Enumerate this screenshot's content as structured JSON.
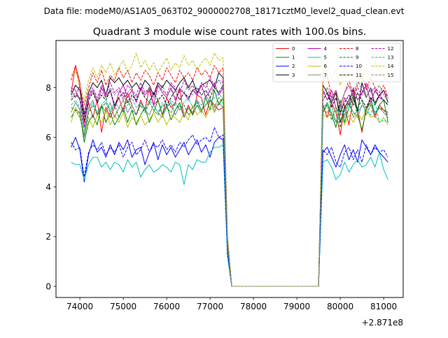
{
  "suptitle": "Data file: modeM0/AS1A05_063T02_9000002708_18171cztM0_level2_quad_clean.evt",
  "chart_data": {
    "type": "line",
    "title": "Quadrant 3 module wise count rates with 100.0s bins.",
    "xlabel": "",
    "ylabel": "",
    "x_offset_label": "+2.871e8",
    "xlim": [
      73450,
      81450
    ],
    "ylim": [
      -0.45,
      9.9
    ],
    "x_ticks": [
      74000,
      75000,
      76000,
      77000,
      78000,
      79000,
      80000,
      81000
    ],
    "y_ticks": [
      0,
      2,
      4,
      6,
      8
    ],
    "grid": false,
    "legend_position": "upper-right",
    "gap": {
      "start": 77500,
      "end": 79500
    },
    "segment1_x": [
      73800,
      73900,
      74000,
      74100,
      74200,
      74300,
      74400,
      74500,
      74600,
      74700,
      74800,
      74900,
      75000,
      75100,
      75200,
      75300,
      75400,
      75500,
      75600,
      75700,
      75800,
      75900,
      76000,
      76100,
      76200,
      76300,
      76400,
      76500,
      76600,
      76700,
      76800,
      76900,
      77000,
      77100,
      77200,
      77300,
      77400
    ],
    "segment2_x": [
      79600,
      79700,
      79800,
      79900,
      80000,
      80100,
      80200,
      80300,
      80400,
      80500,
      80600,
      80700,
      80800,
      80900,
      81000,
      81100
    ],
    "series": [
      {
        "name": "0",
        "color": "#ff0000",
        "dash": "solid",
        "seg1": [
          7.8,
          8.9,
          8.2,
          6.6,
          7.4,
          6.8,
          7.5,
          6.2,
          7.2,
          6.8,
          7.2,
          7.6,
          7.0,
          7.8,
          7.3,
          6.9,
          7.5,
          7.1,
          8.0,
          7.3,
          7.5,
          6.9,
          7.6,
          7.2,
          7.4,
          8.0,
          6.8,
          7.3,
          6.9,
          7.7,
          7.6,
          6.9,
          7.5,
          7.3,
          7.1,
          7.2,
          1.6
        ],
        "seg2": [
          7.3,
          6.8,
          7.4,
          7.0,
          6.1,
          7.3,
          6.5,
          7.6,
          7.1,
          6.2,
          7.2,
          7.4,
          6.8,
          7.3,
          7.1,
          7.0
        ]
      },
      {
        "name": "1",
        "color": "#008000",
        "dash": "solid",
        "seg1": [
          6.8,
          7.1,
          7.0,
          5.8,
          6.6,
          6.9,
          6.5,
          7.3,
          6.6,
          7.0,
          6.5,
          6.8,
          7.2,
          6.6,
          7.1,
          6.5,
          6.9,
          7.2,
          6.6,
          7.0,
          7.5,
          6.9,
          7.3,
          6.7,
          7.1,
          7.4,
          6.8,
          7.2,
          6.9,
          7.3,
          7.0,
          7.6,
          7.1,
          7.9,
          7.3,
          7.6,
          1.5
        ],
        "seg2": [
          7.0,
          7.4,
          6.9,
          6.4,
          7.5,
          6.6,
          7.2,
          7.7,
          6.9,
          6.3,
          7.1,
          7.6,
          6.9,
          7.3,
          7.5,
          6.6
        ]
      },
      {
        "name": "2",
        "color": "#0000ff",
        "dash": "solid",
        "seg1": [
          5.6,
          6.0,
          5.5,
          4.2,
          5.3,
          5.9,
          5.4,
          5.6,
          5.2,
          5.7,
          5.3,
          5.8,
          5.5,
          5.9,
          5.2,
          5.5,
          5.6,
          4.9,
          5.4,
          5.8,
          5.1,
          5.7,
          5.3,
          5.6,
          5.2,
          5.5,
          5.8,
          5.3,
          5.6,
          5.9,
          5.4,
          5.7,
          5.2,
          5.8,
          6.0,
          5.9,
          1.3
        ],
        "seg2": [
          5.4,
          5.6,
          5.2,
          4.8,
          5.3,
          5.7,
          5.1,
          5.5,
          5.0,
          5.9,
          5.6,
          5.3,
          5.7,
          5.4,
          5.2,
          5.0
        ]
      },
      {
        "name": "3",
        "color": "#000000",
        "dash": "solid",
        "seg1": [
          7.7,
          8.1,
          7.9,
          6.9,
          7.8,
          8.2,
          8.0,
          8.3,
          7.7,
          8.4,
          8.2,
          8.4,
          8.1,
          8.3,
          8.0,
          8.2,
          7.9,
          8.3,
          8.1,
          7.7,
          8.2,
          8.0,
          8.3,
          8.1,
          7.9,
          8.2,
          8.4,
          8.0,
          8.3,
          7.8,
          8.1,
          8.2,
          8.3,
          8.0,
          8.6,
          8.4,
          1.9
        ],
        "seg2": [
          8.1,
          7.8,
          7.4,
          7.8,
          6.6,
          7.2,
          7.5,
          7.9,
          7.0,
          8.2,
          7.6,
          8.0,
          7.3,
          7.7,
          7.9,
          7.4
        ]
      },
      {
        "name": "4",
        "color": "#bf00bf",
        "dash": "solid",
        "seg1": [
          8.0,
          7.9,
          7.5,
          6.4,
          7.6,
          7.9,
          7.4,
          8.0,
          7.6,
          7.9,
          7.2,
          7.8,
          8.1,
          7.6,
          7.9,
          7.4,
          8.0,
          7.7,
          7.9,
          7.3,
          8.1,
          7.8,
          7.6,
          8.0,
          7.5,
          7.9,
          7.8,
          7.5,
          7.9,
          7.7,
          8.1,
          7.6,
          7.9,
          8.2,
          7.7,
          8.0,
          1.8
        ],
        "seg2": [
          7.9,
          7.5,
          7.9,
          7.2,
          6.9,
          7.6,
          7.3,
          8.0,
          7.5,
          7.8,
          8.1,
          7.4,
          7.9,
          7.6,
          7.5,
          7.3
        ]
      },
      {
        "name": "5",
        "color": "#00bfbf",
        "dash": "solid",
        "seg1": [
          5.0,
          4.9,
          4.9,
          4.3,
          4.9,
          5.2,
          5.2,
          4.8,
          5.0,
          4.7,
          5.0,
          4.9,
          4.6,
          5.1,
          4.8,
          5.0,
          4.4,
          4.7,
          4.9,
          4.6,
          4.7,
          4.9,
          4.8,
          4.6,
          5.0,
          4.9,
          4.1,
          4.9,
          4.7,
          5.1,
          5.0,
          5.0,
          5.4,
          5.6,
          5.6,
          5.7,
          1.2
        ],
        "seg2": [
          5.0,
          5.1,
          4.8,
          4.3,
          4.5,
          5.0,
          4.6,
          4.9,
          5.1,
          4.8,
          4.9,
          5.2,
          4.8,
          5.4,
          4.7,
          4.3
        ]
      },
      {
        "name": "6",
        "color": "#bfbf00",
        "dash": "solid",
        "seg1": [
          6.6,
          7.2,
          6.9,
          6.0,
          6.8,
          6.4,
          6.9,
          6.6,
          7.1,
          6.5,
          6.9,
          6.6,
          7.0,
          6.4,
          6.8,
          6.6,
          6.9,
          6.5,
          6.7,
          7.0,
          6.6,
          6.9,
          6.5,
          6.9,
          6.8,
          6.6,
          7.0,
          6.7,
          7.3,
          6.9,
          7.1,
          6.8,
          7.2,
          7.1,
          7.4,
          7.6,
          1.6
        ],
        "seg2": [
          6.9,
          6.8,
          7.0,
          6.6,
          7.1,
          6.5,
          6.9,
          6.6,
          7.0,
          6.7,
          7.2,
          6.8,
          6.9,
          6.6,
          6.8,
          6.5
        ]
      },
      {
        "name": "7",
        "color": "#808080",
        "dash": "solid",
        "seg1": [
          7.0,
          7.4,
          7.1,
          6.0,
          7.2,
          7.5,
          6.9,
          7.3,
          7.0,
          7.4,
          6.8,
          7.2,
          7.5,
          7.0,
          7.3,
          6.9,
          7.4,
          7.1,
          6.9,
          7.3,
          7.0,
          6.8,
          7.2,
          7.4,
          6.9,
          7.3,
          6.8,
          7.2,
          7.0,
          7.5,
          7.1,
          7.3,
          7.6,
          7.0,
          7.4,
          7.2,
          1.6
        ],
        "seg2": [
          7.1,
          7.0,
          7.3,
          6.6,
          7.2,
          6.9,
          7.4,
          7.0,
          6.8,
          7.3,
          7.1,
          7.4,
          6.9,
          7.2,
          7.0,
          6.8
        ]
      },
      {
        "name": "8",
        "color": "#ff0000",
        "dash": "dashed",
        "seg1": [
          8.3,
          8.9,
          8.0,
          7.3,
          8.0,
          8.6,
          8.2,
          8.7,
          8.1,
          8.5,
          8.3,
          8.8,
          8.4,
          8.7,
          8.2,
          8.6,
          8.3,
          8.7,
          8.5,
          8.1,
          8.6,
          8.3,
          8.8,
          8.5,
          8.2,
          8.7,
          8.4,
          8.6,
          8.3,
          8.8,
          8.5,
          8.7,
          8.4,
          8.9,
          8.6,
          8.8,
          2.0
        ],
        "seg2": [
          8.2,
          8.5,
          7.6,
          7.9,
          7.2,
          7.8,
          8.3,
          7.7,
          8.1,
          8.6,
          7.9,
          8.4,
          8.0,
          7.8,
          8.1,
          7.6
        ]
      },
      {
        "name": "9",
        "color": "#008000",
        "dash": "dashed",
        "seg1": [
          7.2,
          7.1,
          6.8,
          6.1,
          7.0,
          7.3,
          6.9,
          7.2,
          7.4,
          7.0,
          7.3,
          6.8,
          7.2,
          7.5,
          7.1,
          6.9,
          7.3,
          7.0,
          7.4,
          7.1,
          6.9,
          7.3,
          7.2,
          7.0,
          7.4,
          7.1,
          7.3,
          6.9,
          7.2,
          7.4,
          7.1,
          7.3,
          7.5,
          7.2,
          7.6,
          7.4,
          1.7
        ],
        "seg2": [
          7.0,
          7.3,
          6.7,
          7.2,
          6.4,
          7.1,
          7.4,
          6.8,
          7.2,
          7.5,
          6.9,
          7.3,
          7.0,
          7.2,
          7.1,
          6.9
        ]
      },
      {
        "name": "10",
        "color": "#0000ff",
        "dash": "dashed",
        "seg1": [
          5.8,
          5.5,
          5.6,
          4.4,
          5.4,
          5.7,
          5.5,
          5.8,
          5.3,
          5.6,
          5.4,
          5.7,
          5.2,
          5.6,
          5.8,
          5.3,
          5.5,
          5.9,
          5.4,
          5.7,
          5.6,
          5.9,
          5.5,
          5.7,
          5.4,
          5.8,
          5.6,
          5.9,
          6.1,
          5.7,
          5.9,
          6.0,
          5.8,
          6.4,
          6.0,
          6.1,
          1.4
        ],
        "seg2": [
          5.5,
          5.3,
          5.6,
          5.0,
          4.8,
          5.4,
          5.6,
          5.1,
          5.5,
          5.0,
          5.7,
          5.3,
          5.6,
          5.4,
          5.5,
          5.2
        ]
      },
      {
        "name": "11",
        "color": "#000000",
        "dash": "dashed",
        "seg1": [
          7.5,
          7.7,
          7.6,
          6.7,
          7.5,
          7.8,
          7.4,
          7.7,
          7.5,
          7.9,
          7.3,
          7.6,
          7.8,
          7.4,
          7.7,
          7.5,
          7.9,
          7.6,
          7.4,
          7.8,
          7.5,
          7.7,
          7.3,
          7.6,
          7.9,
          7.5,
          7.8,
          7.6,
          7.9,
          8.0,
          7.7,
          7.9,
          7.6,
          8.0,
          7.8,
          8.1,
          1.8
        ],
        "seg2": [
          7.5,
          7.8,
          7.2,
          7.6,
          7.0,
          7.4,
          7.7,
          7.3,
          7.8,
          7.5,
          7.2,
          7.6,
          7.4,
          7.7,
          7.5,
          7.3
        ]
      },
      {
        "name": "12",
        "color": "#bf00bf",
        "dash": "dashed",
        "seg1": [
          7.9,
          7.6,
          8.1,
          7.0,
          7.7,
          8.0,
          7.6,
          8.1,
          7.7,
          8.2,
          7.8,
          8.0,
          7.6,
          8.1,
          7.9,
          7.7,
          8.2,
          7.8,
          8.0,
          7.6,
          8.1,
          7.9,
          7.7,
          8.2,
          8.0,
          7.8,
          8.3,
          7.9,
          8.1,
          7.7,
          8.2,
          8.0,
          8.4,
          8.1,
          8.3,
          8.2,
          1.9
        ],
        "seg2": [
          7.7,
          8.0,
          7.5,
          7.9,
          7.3,
          7.8,
          8.1,
          7.6,
          8.0,
          7.7,
          8.2,
          7.8,
          8.0,
          7.6,
          7.9,
          7.6
        ]
      },
      {
        "name": "13",
        "color": "#00bfbf",
        "dash": "dashed",
        "seg1": [
          7.3,
          7.5,
          7.2,
          6.3,
          7.1,
          7.4,
          7.0,
          7.3,
          7.5,
          7.1,
          7.4,
          7.2,
          7.0,
          7.3,
          7.6,
          7.2,
          7.4,
          7.1,
          7.5,
          7.3,
          7.0,
          7.4,
          7.2,
          7.5,
          7.3,
          7.1,
          7.4,
          7.6,
          7.2,
          7.5,
          7.3,
          7.7,
          7.4,
          7.6,
          7.8,
          7.5,
          1.7
        ],
        "seg2": [
          7.2,
          7.4,
          7.0,
          6.6,
          7.3,
          6.8,
          7.2,
          7.5,
          7.0,
          7.3,
          7.1,
          6.9,
          7.4,
          6.6,
          6.7,
          6.6
        ]
      },
      {
        "name": "14",
        "color": "#bfbf00",
        "dash": "dashed",
        "seg1": [
          8.5,
          8.7,
          8.1,
          7.5,
          8.3,
          8.8,
          8.4,
          8.9,
          8.6,
          9.0,
          8.5,
          8.8,
          9.1,
          8.6,
          8.9,
          9.4,
          8.8,
          9.1,
          8.7,
          9.0,
          8.6,
          8.9,
          9.2,
          8.7,
          9.0,
          8.8,
          9.3,
          8.9,
          9.1,
          8.7,
          9.0,
          9.2,
          8.9,
          9.4,
          9.1,
          9.2,
          2.1
        ],
        "seg2": [
          8.6,
          8.9,
          8.4,
          8.7,
          8.1,
          8.8,
          8.5,
          9.0,
          8.6,
          8.3,
          8.8,
          8.5,
          9.0,
          8.7,
          8.4,
          8.6
        ]
      },
      {
        "name": "15",
        "color": "#808080",
        "dash": "dashed",
        "seg1": [
          7.6,
          7.8,
          7.5,
          6.8,
          7.7,
          7.9,
          7.5,
          7.8,
          7.6,
          8.0,
          7.7,
          7.9,
          7.5,
          7.8,
          8.0,
          7.6,
          7.9,
          7.7,
          8.0,
          7.6,
          7.8,
          8.1,
          7.7,
          7.9,
          7.6,
          8.0,
          7.8,
          8.1,
          7.7,
          8.0,
          7.9,
          8.2,
          7.8,
          8.1,
          8.3,
          8.0,
          1.8
        ],
        "seg2": [
          7.8,
          8.0,
          7.6,
          7.9,
          7.3,
          7.8,
          8.1,
          7.7,
          8.3,
          7.9,
          7.6,
          8.0,
          7.8,
          8.1,
          7.7,
          7.5
        ]
      }
    ]
  }
}
